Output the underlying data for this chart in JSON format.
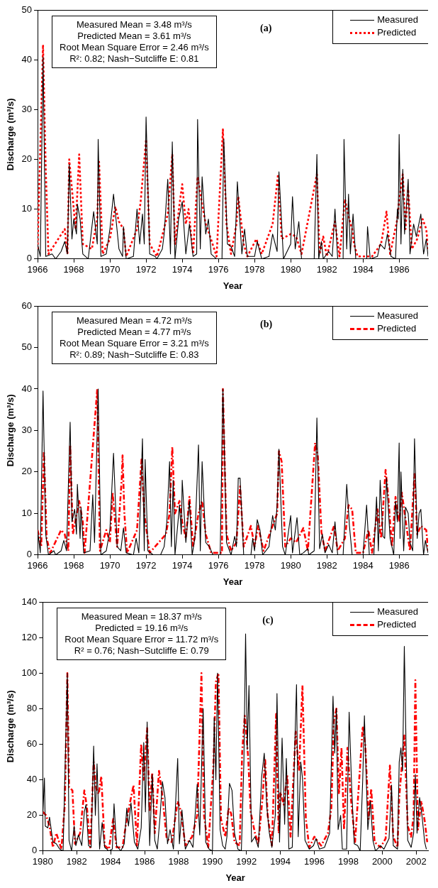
{
  "chart_data": [
    {
      "type": "line",
      "xlabel": "Year",
      "ylabel": "Discharge (m³/s)",
      "xlim": [
        1966,
        1987.6
      ],
      "xticks": [
        1966,
        1968,
        1970,
        1972,
        1974,
        1976,
        1978,
        1980,
        1982,
        1984,
        1986
      ],
      "ylim": [
        0,
        50
      ],
      "yticks": [
        0,
        10,
        20,
        30,
        40,
        50
      ],
      "legend": "top right",
      "annotations": [
        "Measured Mean = 3.48 m³/s",
        "Predicted Mean =  3.61 m³/s",
        "Root Mean Square Error = 2.46 m³/s",
        "R²: 0.82; Nash−Sutcliffe E: 0.81",
        "(a)"
      ],
      "series": [
        {
          "name": "Measured",
          "color": "#000000",
          "line_style": "solid",
          "x": [
            1966,
            1966.15,
            1966.3,
            1966.45,
            1966.8,
            1967,
            1967.3,
            1967.5,
            1967.65,
            1967.75,
            1967.9,
            1968,
            1968.15,
            1968.2,
            1968.35,
            1968.5,
            1968.8,
            1969.1,
            1969.3,
            1969.35,
            1969.5,
            1969.8,
            1970,
            1970.2,
            1970.5,
            1970.7,
            1970.75,
            1970.9,
            1971.3,
            1971.5,
            1971.65,
            1971.8,
            1971.9,
            1972,
            1972.2,
            1972.5,
            1972.6,
            1972.9,
            1973,
            1973.2,
            1973.35,
            1973.45,
            1973.6,
            1973.8,
            1974,
            1974.2,
            1974.4,
            1974.6,
            1974.8,
            1974.85,
            1975,
            1975.1,
            1975.3,
            1975.45,
            1975.6,
            1975.9,
            1976.2,
            1976.3,
            1976.5,
            1976.7,
            1976.9,
            1977.05,
            1977.3,
            1977.45,
            1977.6,
            1978,
            1978.15,
            1978.4,
            1978.8,
            1979,
            1979.25,
            1979.35,
            1979.6,
            1980,
            1980.1,
            1980.25,
            1980.45,
            1980.6,
            1981,
            1981.3,
            1981.45,
            1981.55,
            1981.7,
            1981.8,
            1982.1,
            1982.3,
            1982.45,
            1982.6,
            1982.9,
            1982.95,
            1983.1,
            1983.2,
            1983.3,
            1983.45,
            1983.6,
            1984,
            1984.2,
            1984.25,
            1984.4,
            1984.8,
            1984.95,
            1985.2,
            1985.35,
            1985.55,
            1985.8,
            1985.9,
            1985.95,
            1986,
            1986.1,
            1986.2,
            1986.3,
            1986.5,
            1986.6,
            1986.8,
            1986.95,
            1987.2,
            1987.35,
            1987.5,
            1987.6
          ],
          "values": [
            3,
            0.5,
            40.5,
            0.5,
            1,
            0,
            1.5,
            3.5,
            1,
            19,
            4,
            8,
            5,
            11,
            8,
            1,
            0,
            9.5,
            3,
            24,
            0.5,
            1,
            6,
            13,
            2,
            0.5,
            6.5,
            0,
            0.5,
            10,
            3,
            9,
            3,
            28.5,
            1,
            0.5,
            0,
            2,
            5,
            16,
            1,
            23.5,
            0,
            8,
            11.5,
            1,
            7,
            0.5,
            1,
            28,
            2,
            16.5,
            5,
            8,
            1,
            0,
            0,
            24,
            3,
            2.5,
            0.5,
            15.5,
            1,
            6,
            0.5,
            0.5,
            3.5,
            0,
            0.5,
            5,
            1.5,
            17.5,
            0,
            3,
            12.5,
            2,
            7.5,
            0,
            0,
            0,
            21,
            0,
            3.5,
            0,
            1.5,
            0.5,
            10,
            0,
            0,
            24,
            2,
            13,
            1,
            9,
            0,
            0,
            0,
            6.5,
            0,
            0.5,
            3,
            2,
            5,
            0.5,
            0,
            10,
            8,
            25,
            3,
            18,
            5,
            16,
            1,
            7,
            4.5,
            9,
            1,
            4,
            0.5
          ]
        },
        {
          "name": "Predicted",
          "color": "#ff0000",
          "line_style": "dotted",
          "x": [
            1966,
            1966.3,
            1966.45,
            1966.6,
            1967.5,
            1967.65,
            1967.75,
            1967.9,
            1968.1,
            1968.3,
            1968.5,
            1969,
            1969.3,
            1969.4,
            1969.6,
            1970,
            1970.3,
            1970.5,
            1970.75,
            1970.9,
            1971.5,
            1971.7,
            1972,
            1972.2,
            1972.6,
            1973.2,
            1973.45,
            1973.6,
            1973.85,
            1974,
            1974.2,
            1974.35,
            1974.6,
            1974.85,
            1975.1,
            1975.3,
            1975.5,
            1975.9,
            1976.25,
            1976.45,
            1976.7,
            1977,
            1977.1,
            1977.4,
            1977.6,
            1978.1,
            1978.4,
            1979,
            1979.3,
            1979.5,
            1980,
            1980.3,
            1980.6,
            1981.45,
            1981.6,
            1981.8,
            1982,
            1982.45,
            1982.7,
            1983,
            1983.2,
            1983.4,
            1983.5,
            1983.7,
            1984.5,
            1985,
            1985.3,
            1985.5,
            1985.9,
            1986,
            1986.2,
            1986.35,
            1986.5,
            1986.7,
            1987,
            1987.3,
            1987.5,
            1987.6
          ],
          "values": [
            2,
            43,
            18,
            1,
            6,
            1,
            20,
            14,
            6,
            21,
            3,
            2,
            8,
            19.5,
            1,
            4,
            10.5,
            7.5,
            6,
            0.5,
            6,
            11.5,
            24,
            3,
            0.5,
            9,
            21,
            3,
            11,
            15,
            7,
            10,
            1,
            16.5,
            11,
            7,
            5,
            0.5,
            26,
            7,
            1,
            7,
            12.5,
            3,
            0.5,
            4,
            1,
            7,
            17,
            4,
            5,
            4.5,
            1,
            17,
            1,
            4.5,
            0.5,
            7.5,
            0.5,
            12,
            8.5,
            6,
            3,
            0.5,
            0.5,
            3,
            9.5,
            1,
            8,
            12,
            17,
            6,
            14,
            2,
            4,
            8,
            6,
            2
          ]
        }
      ]
    },
    {
      "type": "line",
      "xlabel": "Year",
      "ylabel": "Discharge (m³/s)",
      "xlim": [
        1966,
        1987.6
      ],
      "xticks": [
        1966,
        1968,
        1970,
        1972,
        1974,
        1976,
        1978,
        1980,
        1982,
        1984,
        1986
      ],
      "ylim": [
        0,
        60
      ],
      "yticks": [
        0,
        10,
        20,
        30,
        40,
        50,
        60
      ],
      "legend": "top right",
      "annotations": [
        "Measured Mean = 4.72 m³/s",
        "Predicted Mean = 4.77 m³/s",
        "Root Mean Square Error = 3.21 m³/s",
        "R²: 0.89; Nash−Sutcliffe E: 0.83",
        "(b)"
      ],
      "series": [
        {
          "name": "Measured",
          "color": "#000000",
          "line_style": "solid",
          "x": [
            1966,
            1966.15,
            1966.3,
            1966.45,
            1966.6,
            1966.9,
            1967,
            1967.3,
            1967.45,
            1967.6,
            1967.8,
            1967.9,
            1968.05,
            1968.15,
            1968.2,
            1968.35,
            1968.4,
            1968.55,
            1968.9,
            1969.05,
            1969.15,
            1969.35,
            1969.5,
            1969.8,
            1970,
            1970.2,
            1970.4,
            1970.6,
            1970.75,
            1970.9,
            1971.3,
            1971.45,
            1971.6,
            1971.8,
            1971.9,
            1971.95,
            1972.1,
            1972.4,
            1972.8,
            1973,
            1973.15,
            1973.3,
            1973.4,
            1973.5,
            1973.6,
            1973.85,
            1973.95,
            1974,
            1974.2,
            1974.4,
            1974.55,
            1974.7,
            1974.9,
            1975,
            1975.1,
            1975.3,
            1975.5,
            1975.7,
            1976.1,
            1976.25,
            1976.45,
            1976.7,
            1976.9,
            1977,
            1977.1,
            1977.2,
            1977.4,
            1977.8,
            1977.9,
            1978,
            1978.15,
            1978.3,
            1978.45,
            1978.8,
            1979,
            1979.15,
            1979.25,
            1979.35,
            1979.55,
            1979.7,
            1980,
            1980.1,
            1980.35,
            1980.5,
            1980.7,
            1980.95,
            1981,
            1981.3,
            1981.45,
            1981.6,
            1981.75,
            1981.9,
            1982.1,
            1982.3,
            1982.45,
            1982.6,
            1982.9,
            1983.1,
            1983.25,
            1983.4,
            1983.7,
            1984,
            1984.2,
            1984.35,
            1984.6,
            1984.75,
            1984.85,
            1984.95,
            1985.1,
            1985.2,
            1985.3,
            1985.5,
            1985.7,
            1985.8,
            1985.9,
            1986,
            1986.05,
            1986.1,
            1986.25,
            1986.35,
            1986.5,
            1986.6,
            1986.75,
            1986.85,
            1987,
            1987.1,
            1987.2,
            1987.35,
            1987.45,
            1987.6
          ],
          "values": [
            6,
            0.5,
            39.5,
            5,
            0,
            1,
            0,
            1,
            3.5,
            1,
            32,
            8,
            11,
            5,
            17,
            4,
            11.5,
            0.5,
            1,
            14.5,
            3,
            40,
            0,
            1,
            6,
            24.5,
            2,
            1,
            6.5,
            0.5,
            0,
            4,
            0.5,
            28,
            1,
            23,
            1,
            0,
            0,
            2,
            8,
            22.5,
            2,
            18,
            0,
            12,
            5,
            18,
            3,
            13,
            0,
            4,
            26.5,
            1,
            22.5,
            3,
            2,
            0,
            0,
            40,
            3,
            0,
            4.5,
            2,
            18.5,
            18.5,
            0,
            0,
            4,
            1,
            8.5,
            6,
            0,
            2,
            9.5,
            6,
            12,
            25.5,
            2,
            0,
            9.5,
            0.5,
            9,
            0,
            0.5,
            1.5,
            0,
            1,
            33,
            1.5,
            5,
            0.5,
            2.5,
            0.5,
            8,
            0,
            0,
            17,
            7,
            0,
            0,
            0,
            12,
            0,
            0,
            14,
            1,
            18,
            4.5,
            4,
            18.5,
            4,
            0,
            13,
            8,
            27,
            4,
            20,
            1,
            11.5,
            10,
            3,
            1,
            28,
            4,
            10,
            11,
            0,
            3.5,
            0.5
          ]
        },
        {
          "name": "Predicted",
          "color": "#ff0000",
          "line_style": "dashed",
          "x": [
            1966,
            1966.2,
            1966.35,
            1966.5,
            1966.7,
            1967.3,
            1967.5,
            1967.7,
            1967.8,
            1967.95,
            1968.3,
            1968.5,
            1968.6,
            1969.3,
            1969.45,
            1969.8,
            1970,
            1970.15,
            1970.4,
            1970.65,
            1970.7,
            1970.8,
            1970.95,
            1971.5,
            1971.75,
            1971.9,
            1972.2,
            1972.9,
            1973.1,
            1973.3,
            1973.45,
            1973.6,
            1973.85,
            1974,
            1974.2,
            1974.4,
            1974.6,
            1974.9,
            1975.1,
            1975.3,
            1975.6,
            1976.2,
            1976.25,
            1976.45,
            1976.7,
            1977,
            1977.2,
            1977.4,
            1977.8,
            1978,
            1978.2,
            1978.5,
            1979,
            1979.25,
            1979.35,
            1979.5,
            1979.7,
            1980,
            1980.3,
            1980.7,
            1980.95,
            1981.35,
            1981.5,
            1981.7,
            1981.9,
            1982.4,
            1982.6,
            1983,
            1983.2,
            1983.4,
            1983.6,
            1984,
            1984.3,
            1984.5,
            1984.8,
            1985,
            1985.25,
            1985.4,
            1985.6,
            1985.8,
            1986,
            1986.15,
            1986.4,
            1986.6,
            1986.85,
            1987,
            1987.2,
            1987.5,
            1987.6
          ],
          "values": [
            6,
            2,
            25,
            4,
            0.5,
            6,
            5,
            1,
            26.5,
            5,
            13,
            8,
            0.5,
            40,
            1,
            6,
            3,
            15,
            2,
            18,
            24,
            10,
            0.5,
            6,
            23,
            10,
            0.5,
            4,
            5,
            10,
            26,
            10,
            13,
            8,
            4,
            14,
            2,
            10,
            13,
            5,
            0.5,
            0.5,
            40,
            5,
            1,
            3,
            16.5,
            2,
            7,
            2,
            7,
            1,
            7,
            10,
            25,
            22.5,
            2,
            4,
            3,
            6.5,
            1,
            27,
            24,
            5.5,
            1,
            7,
            1,
            4,
            12,
            11,
            0.5,
            0.5,
            6,
            0.5,
            11,
            4,
            20.5,
            14,
            2,
            14,
            8,
            15,
            7,
            1,
            19.5,
            5,
            7,
            6,
            1
          ]
        }
      ]
    },
    {
      "type": "line",
      "xlabel": "Year",
      "ylabel": "Discharge (m³/s)",
      "xlim": [
        1980,
        2002.7
      ],
      "xticks": [
        1980,
        1982,
        1984,
        1986,
        1988,
        1990,
        1992,
        1994,
        1996,
        1998,
        2000,
        2002
      ],
      "ylim": [
        0,
        140
      ],
      "yticks": [
        0,
        20,
        40,
        60,
        80,
        100,
        120,
        140
      ],
      "legend": "top right",
      "annotations": [
        "Measured Mean = 18.37 m³/s",
        "Predicted =  19.16 m³/s",
        "Root Mean Square Error = 11.72 m³/s",
        "R² = 0.76; Nash−Sutcliffe E: 0.79",
        "(c)"
      ],
      "series": [
        {
          "name": "Measured",
          "color": "#000000",
          "line_style": "solid",
          "x": [
            1980,
            1980.1,
            1980.15,
            1980.3,
            1980.4,
            1980.6,
            1980.8,
            1981,
            1981.2,
            1981.35,
            1981.45,
            1981.55,
            1981.7,
            1981.85,
            1981.95,
            1982.1,
            1982.3,
            1982.45,
            1982.55,
            1982.7,
            1982.85,
            1983,
            1983.1,
            1983.2,
            1983.35,
            1983.5,
            1983.65,
            1983.9,
            1984.1,
            1984.2,
            1984.35,
            1984.6,
            1984.8,
            1984.95,
            1985.05,
            1985.2,
            1985.4,
            1985.6,
            1985.8,
            1985.95,
            1986.05,
            1986.15,
            1986.3,
            1986.45,
            1986.6,
            1986.75,
            1986.9,
            1987.05,
            1987.2,
            1987.35,
            1987.5,
            1987.7,
            1987.95,
            1988.05,
            1988.2,
            1988.4,
            1988.65,
            1988.85,
            1989.1,
            1989.25,
            1989.45,
            1989.6,
            1989.8,
            1990,
            1990.1,
            1990.2,
            1990.3,
            1990.45,
            1990.6,
            1990.75,
            1990.85,
            1991,
            1991.15,
            1991.3,
            1991.5,
            1991.7,
            1991.85,
            1991.95,
            1992.05,
            1992.15,
            1992.3,
            1992.5,
            1992.7,
            1992.9,
            1993.05,
            1993.2,
            1993.35,
            1993.5,
            1993.7,
            1993.8,
            1993.95,
            1994.1,
            1994.25,
            1994.35,
            1994.5,
            1994.7,
            1994.85,
            1994.95,
            1995.05,
            1995.2,
            1995.3,
            1995.45,
            1995.7,
            1995.95,
            1996.1,
            1996.3,
            1996.6,
            1996.9,
            1997.1,
            1997.2,
            1997.3,
            1997.4,
            1997.55,
            1997.65,
            1997.9,
            1998.05,
            1998.2,
            1998.35,
            1998.55,
            1998.7,
            1998.85,
            1998.95,
            1999.15,
            1999.3,
            1999.45,
            1999.6,
            1999.9,
            2000.1,
            2000.4,
            2000.55,
            2000.65,
            2000.9,
            2001,
            2001.1,
            2001.2,
            2001.3,
            2001.5,
            2001.7,
            2001.85,
            2001.95,
            2002.05,
            2002.2,
            2002.35,
            2002.5,
            2002.6
          ],
          "values": [
            19,
            41,
            14,
            13,
            19,
            5,
            4,
            1,
            0,
            60,
            100,
            6,
            0,
            14,
            3,
            9,
            3,
            22,
            26,
            3,
            2,
            59,
            20,
            49,
            1,
            16,
            2,
            0,
            1,
            26.5,
            3,
            0,
            4,
            24,
            14,
            27,
            5,
            1,
            13,
            61,
            22,
            72.5,
            3,
            43,
            6,
            1,
            18,
            39,
            30,
            4,
            12,
            1,
            52,
            4,
            23,
            1,
            6,
            2,
            37.5,
            9,
            80,
            5,
            1,
            0,
            75,
            40,
            100,
            12,
            3,
            1,
            8,
            38,
            34,
            10,
            1,
            0,
            50,
            122,
            57,
            93,
            5,
            8,
            2,
            42,
            55,
            25,
            10,
            2,
            20,
            88.5,
            5,
            63.5,
            15,
            52,
            1,
            2,
            60,
            93.5,
            8,
            50,
            41,
            6,
            1,
            3,
            7,
            1,
            2,
            10,
            87,
            55,
            80,
            12,
            20,
            1,
            1,
            78,
            35,
            4,
            3,
            0,
            40,
            76,
            12,
            28,
            6,
            0,
            3,
            1,
            7,
            37,
            3,
            1,
            50,
            58,
            45,
            115,
            6,
            2,
            10,
            43,
            10,
            30,
            19,
            5,
            1
          ]
        },
        {
          "name": "Predicted",
          "color": "#ff0000",
          "line_style": "dashed",
          "x": [
            1980,
            1980.2,
            1980.4,
            1980.6,
            1980.8,
            1981.1,
            1981.3,
            1981.45,
            1981.55,
            1981.75,
            1981.9,
            1982.2,
            1982.45,
            1982.6,
            1982.8,
            1983,
            1983.15,
            1983.3,
            1983.45,
            1983.65,
            1983.9,
            1984.15,
            1984.35,
            1984.7,
            1984.95,
            1985.2,
            1985.35,
            1985.55,
            1985.8,
            1985.95,
            1986.15,
            1986.3,
            1986.45,
            1986.6,
            1986.85,
            1987.05,
            1987.3,
            1987.6,
            1987.95,
            1988.15,
            1988.4,
            1988.8,
            1989.1,
            1989.35,
            1989.5,
            1989.75,
            1990.05,
            1990.2,
            1990.35,
            1990.5,
            1990.75,
            1990.95,
            1991.1,
            1991.3,
            1991.6,
            1991.75,
            1991.9,
            1992.1,
            1992.25,
            1992.5,
            1992.7,
            1992.95,
            1993.1,
            1993.25,
            1993.5,
            1993.75,
            1993.9,
            1994,
            1994.2,
            1994.4,
            1994.6,
            1994.9,
            1995.1,
            1995.3,
            1995.5,
            1995.7,
            1996,
            1996.4,
            1996.8,
            1997,
            1997.15,
            1997.3,
            1997.45,
            1997.6,
            1997.75,
            1997.95,
            1998.15,
            1998.4,
            1998.85,
            1999,
            1999.2,
            1999.35,
            1999.55,
            1999.9,
            2000.2,
            2000.45,
            2000.65,
            2000.9,
            2001,
            2001.3,
            2001.5,
            2001.7,
            2001.85,
            2001.95,
            2002.1,
            2002.3,
            2002.5,
            2002.65
          ],
          "values": [
            22,
            20,
            14,
            2,
            10,
            1,
            26,
            100,
            36,
            34,
            4,
            10,
            34,
            25,
            2,
            50,
            35,
            32,
            42,
            3,
            1,
            18,
            2,
            2,
            18,
            30,
            37,
            3,
            60,
            40,
            69,
            22,
            44,
            10,
            45,
            31,
            7,
            5,
            28,
            22,
            3,
            8,
            20,
            100,
            20,
            2,
            47,
            95,
            100,
            18,
            8,
            24,
            21,
            5,
            3,
            56,
            76,
            53,
            22,
            10,
            4,
            30,
            52,
            20,
            3,
            77,
            10,
            33,
            26,
            43,
            8,
            67,
            45,
            93,
            18,
            2,
            8,
            3,
            10,
            24,
            73,
            80,
            32,
            58,
            12,
            58,
            30,
            5,
            70,
            60,
            18,
            35,
            5,
            2,
            7,
            48,
            8,
            2,
            30,
            65,
            14,
            8,
            20,
            96,
            12,
            28,
            17,
            5
          ]
        }
      ]
    }
  ]
}
